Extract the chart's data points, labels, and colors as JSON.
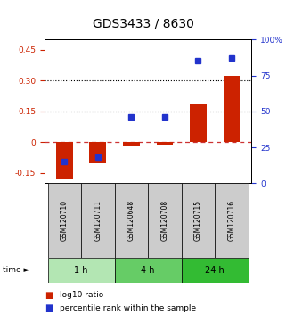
{
  "title": "GDS3433 / 8630",
  "samples": [
    "GSM120710",
    "GSM120711",
    "GSM120648",
    "GSM120708",
    "GSM120715",
    "GSM120716"
  ],
  "time_groups": [
    {
      "label": "1 h",
      "color": "#b3e6b3",
      "count": 2
    },
    {
      "label": "4 h",
      "color": "#66cc66",
      "count": 2
    },
    {
      "label": "24 h",
      "color": "#33bb33",
      "count": 2
    }
  ],
  "log10_ratio": [
    -0.175,
    -0.105,
    -0.02,
    -0.01,
    0.185,
    0.325
  ],
  "percentile_rank": [
    15,
    18,
    46,
    46,
    85,
    87
  ],
  "left_ylim": [
    -0.2,
    0.5
  ],
  "right_ylim": [
    0,
    100
  ],
  "left_yticks": [
    -0.15,
    0.0,
    0.15,
    0.3,
    0.45
  ],
  "left_yticklabels": [
    "-0.15",
    "0",
    "0.15",
    "0.30",
    "0.45"
  ],
  "right_yticks": [
    0,
    25,
    50,
    75,
    100
  ],
  "right_yticklabels": [
    "0",
    "25",
    "50",
    "75",
    "100%"
  ],
  "hlines": [
    0.15,
    0.3
  ],
  "bar_color": "#cc2200",
  "dot_color": "#2233cc",
  "zero_line_color": "#cc3333",
  "sample_box_color": "#cccccc",
  "bg_color": "#ffffff",
  "bar_width": 0.5,
  "tick_fontsize": 6.5,
  "title_fontsize": 10,
  "sample_fontsize": 5.5,
  "time_fontsize": 7,
  "legend_fontsize": 6.5,
  "dot_size": 5
}
